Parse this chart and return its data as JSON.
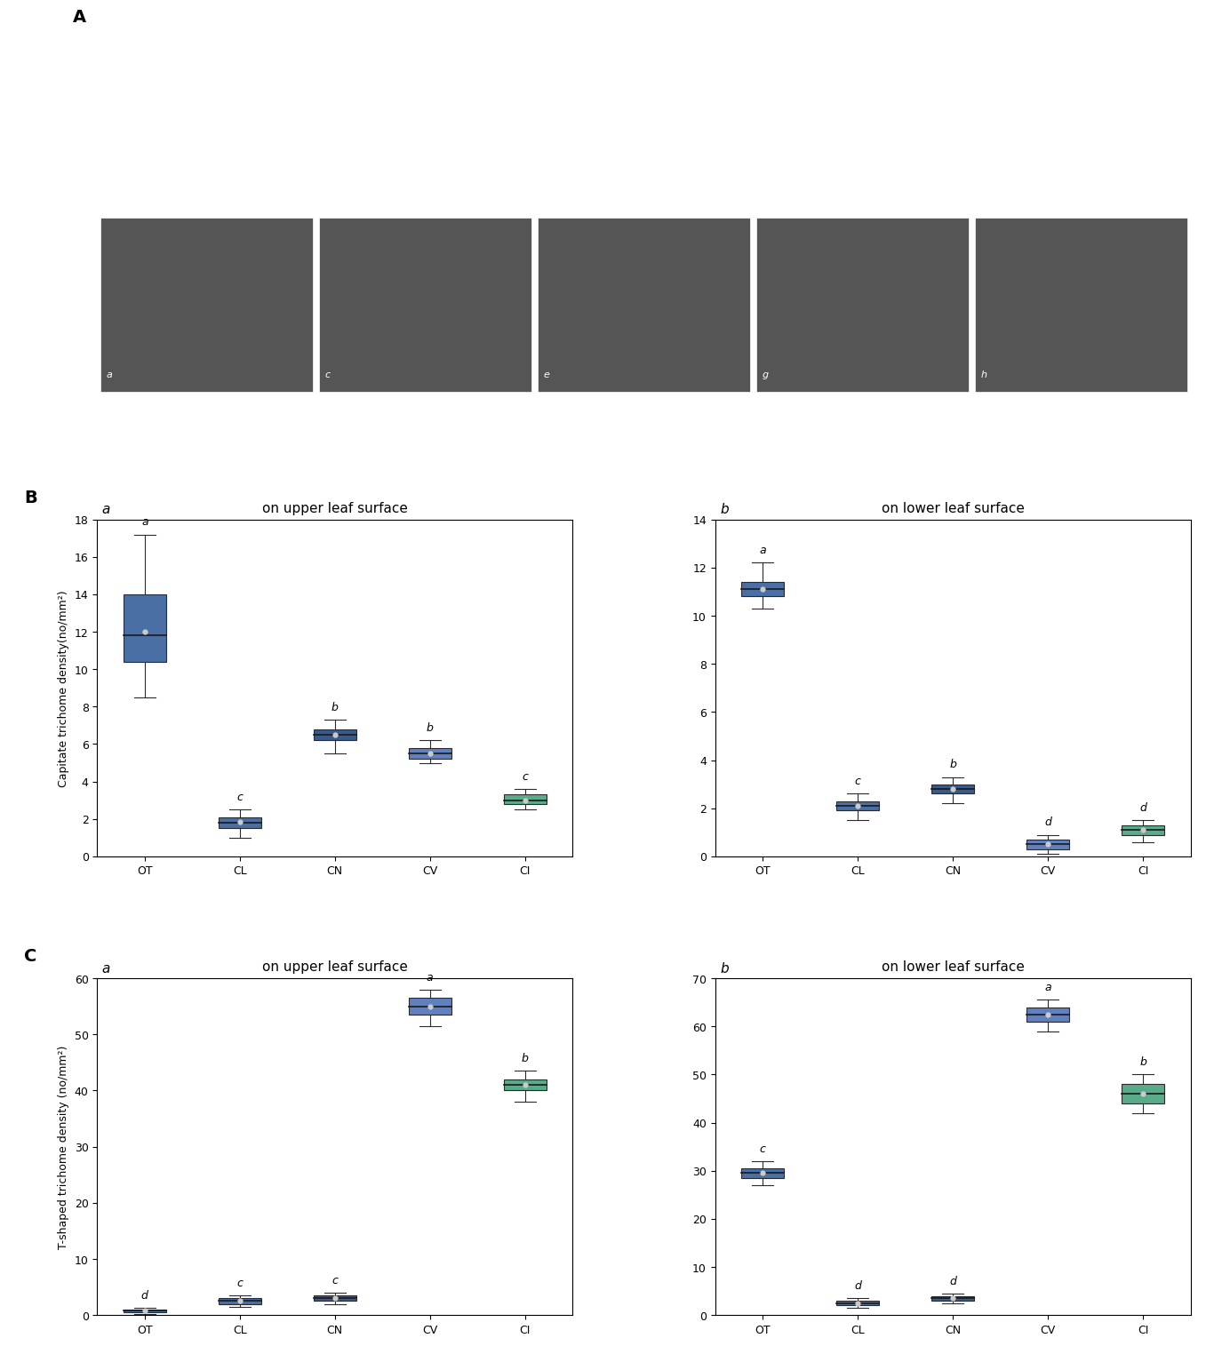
{
  "panel_B_upper": {
    "title": "on upper leaf surface",
    "ylabel": "Capitate trichome density(no/mm²)",
    "xlim": [
      -0.5,
      4.5
    ],
    "ylim": [
      0,
      18
    ],
    "yticks": [
      0,
      2,
      4,
      6,
      8,
      10,
      12,
      14,
      16,
      18
    ],
    "categories": [
      "OT",
      "CL",
      "CN",
      "CV",
      "CI"
    ],
    "colors": [
      "#4a6fa5",
      "#4a6fa5",
      "#3a5a8a",
      "#5b7ec5",
      "#5aab8a"
    ],
    "box_data": [
      {
        "whisker_low": 8.5,
        "q1": 10.4,
        "median": 11.8,
        "q3": 14.0,
        "whisker_high": 17.2,
        "mean": 12.0,
        "label": "a"
      },
      {
        "whisker_low": 1.0,
        "q1": 1.5,
        "median": 1.8,
        "q3": 2.1,
        "whisker_high": 2.5,
        "mean": 1.85,
        "label": "c"
      },
      {
        "whisker_low": 5.5,
        "q1": 6.2,
        "median": 6.5,
        "q3": 6.8,
        "whisker_high": 7.3,
        "mean": 6.5,
        "label": "b"
      },
      {
        "whisker_low": 5.0,
        "q1": 5.2,
        "median": 5.5,
        "q3": 5.8,
        "whisker_high": 6.2,
        "mean": 5.5,
        "label": "b"
      },
      {
        "whisker_low": 2.5,
        "q1": 2.8,
        "median": 3.0,
        "q3": 3.3,
        "whisker_high": 3.6,
        "mean": 3.0,
        "label": "c"
      }
    ]
  },
  "panel_B_lower": {
    "title": "on lower leaf surface",
    "xlim": [
      -0.5,
      4.5
    ],
    "ylim": [
      0,
      14
    ],
    "yticks": [
      0,
      2,
      4,
      6,
      8,
      10,
      12,
      14
    ],
    "categories": [
      "OT",
      "CL",
      "CN",
      "CV",
      "CI"
    ],
    "colors": [
      "#4a6fa5",
      "#4a6fa5",
      "#3a5a8a",
      "#5b7ec5",
      "#5aab8a"
    ],
    "box_data": [
      {
        "whisker_low": 10.3,
        "q1": 10.8,
        "median": 11.1,
        "q3": 11.4,
        "whisker_high": 12.2,
        "mean": 11.1,
        "label": "a"
      },
      {
        "whisker_low": 1.5,
        "q1": 1.9,
        "median": 2.1,
        "q3": 2.3,
        "whisker_high": 2.6,
        "mean": 2.1,
        "label": "c"
      },
      {
        "whisker_low": 2.2,
        "q1": 2.6,
        "median": 2.8,
        "q3": 3.0,
        "whisker_high": 3.3,
        "mean": 2.8,
        "label": "b"
      },
      {
        "whisker_low": 0.1,
        "q1": 0.3,
        "median": 0.5,
        "q3": 0.7,
        "whisker_high": 0.9,
        "mean": 0.5,
        "label": "d"
      },
      {
        "whisker_low": 0.6,
        "q1": 0.9,
        "median": 1.1,
        "q3": 1.3,
        "whisker_high": 1.5,
        "mean": 1.1,
        "label": "d"
      }
    ]
  },
  "panel_C_upper": {
    "title": "on upper leaf surface",
    "ylabel": "T-shaped trichome density (no/mm²)",
    "xlim": [
      -0.5,
      4.5
    ],
    "ylim": [
      0,
      60
    ],
    "yticks": [
      0,
      10,
      20,
      30,
      40,
      50,
      60
    ],
    "categories": [
      "OT",
      "CL",
      "CN",
      "CV",
      "CI"
    ],
    "colors": [
      "#4a6fa5",
      "#4a6fa5",
      "#3a5a8a",
      "#5b7ec5",
      "#5aab8a"
    ],
    "box_data": [
      {
        "whisker_low": 0.2,
        "q1": 0.5,
        "median": 0.8,
        "q3": 1.0,
        "whisker_high": 1.3,
        "mean": 0.8,
        "label": "d"
      },
      {
        "whisker_low": 1.5,
        "q1": 2.0,
        "median": 2.5,
        "q3": 3.0,
        "whisker_high": 3.5,
        "mean": 2.5,
        "label": "c"
      },
      {
        "whisker_low": 2.0,
        "q1": 2.5,
        "median": 3.0,
        "q3": 3.5,
        "whisker_high": 4.0,
        "mean": 3.0,
        "label": "c"
      },
      {
        "whisker_low": 51.5,
        "q1": 53.5,
        "median": 55.0,
        "q3": 56.5,
        "whisker_high": 58.0,
        "mean": 55.0,
        "label": "a"
      },
      {
        "whisker_low": 38.0,
        "q1": 40.0,
        "median": 41.0,
        "q3": 42.0,
        "whisker_high": 43.5,
        "mean": 41.0,
        "label": "b"
      }
    ]
  },
  "panel_C_lower": {
    "title": "on lower leaf surface",
    "xlim": [
      -0.5,
      4.5
    ],
    "ylim": [
      0,
      70
    ],
    "yticks": [
      0,
      10,
      20,
      30,
      40,
      50,
      60,
      70
    ],
    "categories": [
      "OT",
      "CL",
      "CN",
      "CV",
      "CI"
    ],
    "colors": [
      "#4a6fa5",
      "#4a6fa5",
      "#3a5a8a",
      "#5b7ec5",
      "#5aab8a"
    ],
    "box_data": [
      {
        "whisker_low": 27.0,
        "q1": 28.5,
        "median": 29.5,
        "q3": 30.5,
        "whisker_high": 32.0,
        "mean": 29.5,
        "label": "c"
      },
      {
        "whisker_low": 1.5,
        "q1": 2.0,
        "median": 2.5,
        "q3": 3.0,
        "whisker_high": 3.5,
        "mean": 2.5,
        "label": "d"
      },
      {
        "whisker_low": 2.5,
        "q1": 3.0,
        "median": 3.5,
        "q3": 4.0,
        "whisker_high": 4.5,
        "mean": 3.5,
        "label": "d"
      },
      {
        "whisker_low": 59.0,
        "q1": 61.0,
        "median": 62.5,
        "q3": 64.0,
        "whisker_high": 65.5,
        "mean": 62.5,
        "label": "a"
      },
      {
        "whisker_low": 42.0,
        "q1": 44.0,
        "median": 46.0,
        "q3": 48.0,
        "whisker_high": 50.0,
        "mean": 46.0,
        "label": "b"
      }
    ]
  },
  "box_colors": {
    "OT": "#4a6fa5",
    "CL": "#4a6fa5",
    "CN": "#3a5a8a",
    "CV": "#6080c0",
    "CI": "#5aab8a"
  },
  "box_colors_list_B": [
    "#4a6fa5",
    "#4a6fa5",
    "#3a5a8a",
    "#6080c0",
    "#5aab8a"
  ],
  "box_colors_list_C": [
    "#4a6fa5",
    "#4a6fa5",
    "#3a5a8a",
    "#6080c0",
    "#5aab8a"
  ]
}
